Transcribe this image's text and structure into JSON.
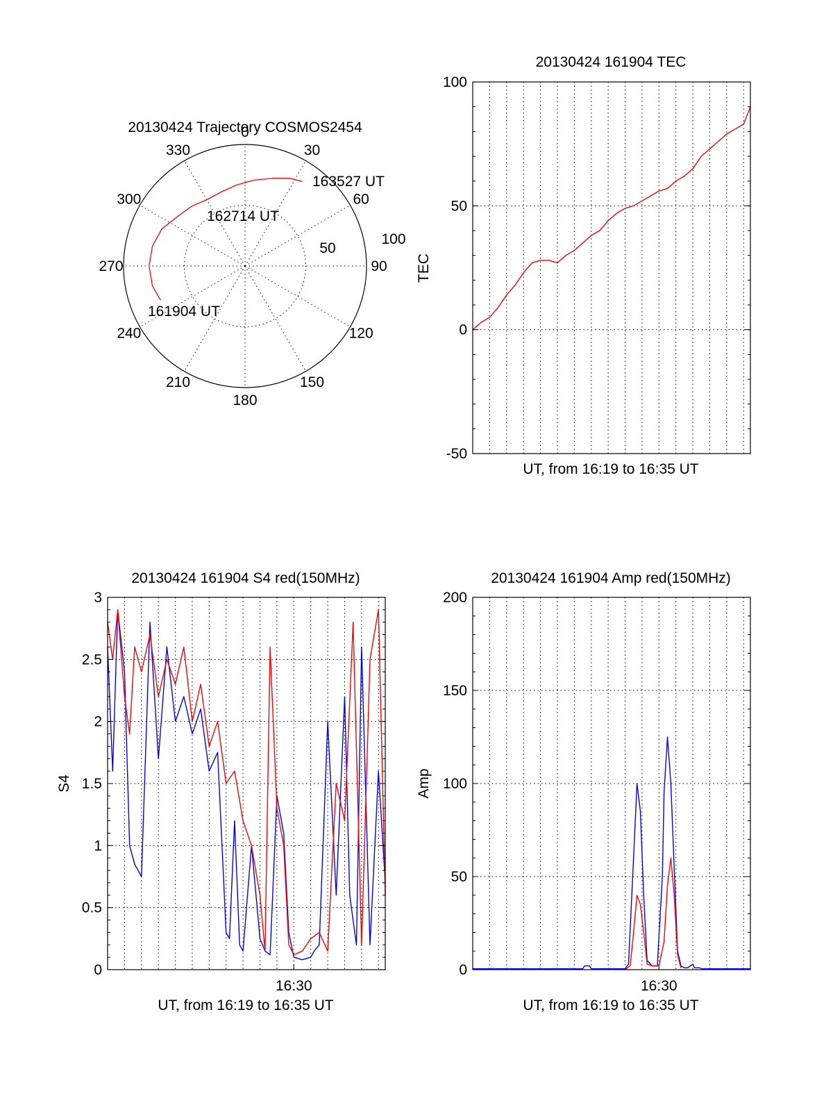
{
  "chart_data": [
    {
      "type": "polar",
      "title": "20130424 Trajectory COSMOS2454",
      "angle_labels": [
        "0",
        "30",
        "60",
        "90",
        "120",
        "150",
        "180",
        "210",
        "240",
        "270",
        "300",
        "330"
      ],
      "radial_labels": [
        "50",
        "100"
      ],
      "radial_range": [
        0,
        100
      ],
      "series": [
        {
          "color": "#ff0000",
          "points": [
            {
              "az": 248,
              "r": 75
            },
            {
              "az": 258,
              "r": 78
            },
            {
              "az": 270,
              "r": 79
            },
            {
              "az": 282,
              "r": 78
            },
            {
              "az": 294,
              "r": 75
            },
            {
              "az": 306,
              "r": 69
            },
            {
              "az": 318,
              "r": 66
            },
            {
              "az": 330,
              "r": 63
            },
            {
              "az": 342,
              "r": 64
            },
            {
              "az": 354,
              "r": 67
            },
            {
              "az": 6,
              "r": 71
            },
            {
              "az": 18,
              "r": 76
            },
            {
              "az": 27,
              "r": 81
            },
            {
              "az": 34,
              "r": 84
            }
          ]
        }
      ],
      "annotations": [
        "163527 UT",
        "162714 UT",
        "161904 UT"
      ]
    },
    {
      "type": "line",
      "title": "20130424 161904 TEC",
      "xlabel": "UT, from 16:19 to 16:35 UT",
      "ylabel": "TEC",
      "ylim": [
        -50,
        100
      ],
      "yticks": [
        "100",
        "50",
        "0",
        "-50"
      ],
      "xlim": [
        0,
        16.4
      ],
      "grid": true,
      "series": [
        {
          "color": "#ff0000",
          "x": [
            0,
            0.5,
            1,
            1.5,
            2,
            2.5,
            3,
            3.5,
            4,
            4.5,
            5,
            5.5,
            6,
            6.5,
            7,
            7.5,
            8,
            8.5,
            9,
            9.5,
            10,
            10.5,
            11,
            11.5,
            12,
            12.5,
            13,
            13.5,
            14,
            14.5,
            15,
            15.5,
            16,
            16.4
          ],
          "y": [
            0,
            3,
            5,
            9,
            14,
            18,
            23,
            27,
            28,
            28,
            27,
            30,
            32,
            35,
            38,
            40,
            44,
            47,
            49,
            50,
            52,
            54,
            56,
            57,
            60,
            62,
            65,
            70,
            73,
            76,
            79,
            81,
            83,
            90
          ]
        }
      ]
    },
    {
      "type": "line",
      "title": "20130424 161904 S4 red(150MHz)",
      "xlabel": "UT, from 16:19 to 16:35 UT",
      "ylabel": "S4",
      "ylim": [
        0,
        3
      ],
      "yticks": [
        "3",
        "2.5",
        "2",
        "1.5",
        "1",
        "0.5",
        "0"
      ],
      "xlim": [
        0,
        16.4
      ],
      "xtick_labels": [
        {
          "x": 11.0,
          "label": "16:30"
        }
      ],
      "grid": true,
      "series": [
        {
          "color": "#0000ff",
          "x": [
            0,
            0.3,
            0.6,
            1,
            1.3,
            1.6,
            2,
            2.5,
            3,
            3.5,
            4,
            4.5,
            5,
            5.5,
            6,
            6.5,
            7,
            7.2,
            7.5,
            7.8,
            8,
            8.5,
            9,
            9.3,
            9.6,
            10,
            10.4,
            10.7,
            11,
            11.5,
            12,
            12.2,
            12.5,
            13,
            13.5,
            14,
            14.3,
            14.7,
            15,
            15.5,
            16,
            16.4
          ],
          "y": [
            2.6,
            1.6,
            2.9,
            2.4,
            1.0,
            0.85,
            0.75,
            2.8,
            1.7,
            2.6,
            2.0,
            2.2,
            1.9,
            2.1,
            1.6,
            1.75,
            0.3,
            0.25,
            1.2,
            0.2,
            0.15,
            1.0,
            0.25,
            0.15,
            0.12,
            1.4,
            1.1,
            0.3,
            0.1,
            0.08,
            0.1,
            0.15,
            0.2,
            2.0,
            0.6,
            2.2,
            0.6,
            0.2,
            2.6,
            0.2,
            1.6,
            0.7
          ]
        },
        {
          "color": "#ff0000",
          "x": [
            0,
            0.3,
            0.6,
            1,
            1.3,
            1.6,
            2,
            2.5,
            3,
            3.5,
            4,
            4.5,
            5,
            5.5,
            6,
            6.5,
            7,
            7.5,
            8,
            8.5,
            9,
            9.3,
            9.6,
            10,
            10.4,
            10.7,
            11,
            11.5,
            12,
            12.5,
            13,
            13.5,
            14,
            14.5,
            15,
            15.5,
            16,
            16.4
          ],
          "y": [
            2.8,
            2.5,
            2.9,
            2.2,
            1.9,
            2.6,
            2.4,
            2.7,
            2.2,
            2.5,
            2.3,
            2.6,
            2.0,
            2.3,
            1.8,
            2.0,
            1.5,
            1.6,
            1.2,
            1.0,
            0.6,
            0.15,
            2.6,
            1.3,
            1.0,
            0.2,
            0.12,
            0.15,
            0.25,
            0.3,
            0.15,
            1.5,
            1.2,
            2.8,
            0.2,
            2.5,
            2.9,
            0.6
          ]
        }
      ]
    },
    {
      "type": "line",
      "title": "20130424 161904 Amp red(150MHz)",
      "xlabel": "UT, from 16:19 to 16:35 UT",
      "ylabel": "Amp",
      "ylim": [
        0,
        200
      ],
      "yticks": [
        "200",
        "150",
        "100",
        "50",
        "0"
      ],
      "xlim": [
        0,
        16.4
      ],
      "xtick_labels": [
        {
          "x": 11.0,
          "label": "16:30"
        }
      ],
      "grid": true,
      "series": [
        {
          "color": "#0000ff",
          "x": [
            0,
            6.5,
            6.6,
            6.9,
            7,
            9,
            9.2,
            9.5,
            9.7,
            9.9,
            10.1,
            10.3,
            10.6,
            10.9,
            11.2,
            11.3,
            11.5,
            11.7,
            11.9,
            12.1,
            12.3,
            12.5,
            12.7,
            13.0,
            13.1,
            13.4,
            13.5,
            16.4
          ],
          "y": [
            0.5,
            0.5,
            2,
            2,
            0.5,
            0.5,
            3,
            60,
            100,
            85,
            40,
            5,
            2,
            2,
            50,
            95,
            125,
            100,
            55,
            10,
            2,
            1,
            1,
            3,
            1,
            1,
            0.5,
            0.5
          ]
        },
        {
          "color": "#ff0000",
          "x": [
            9,
            9.3,
            9.5,
            9.7,
            9.9,
            10.1,
            10.3,
            10.6,
            11.0,
            11.3,
            11.5,
            11.7,
            11.9,
            12.1,
            12.3
          ],
          "y": [
            0,
            2,
            20,
            40,
            35,
            20,
            3,
            2,
            2,
            15,
            45,
            60,
            40,
            8,
            1
          ]
        }
      ]
    }
  ]
}
